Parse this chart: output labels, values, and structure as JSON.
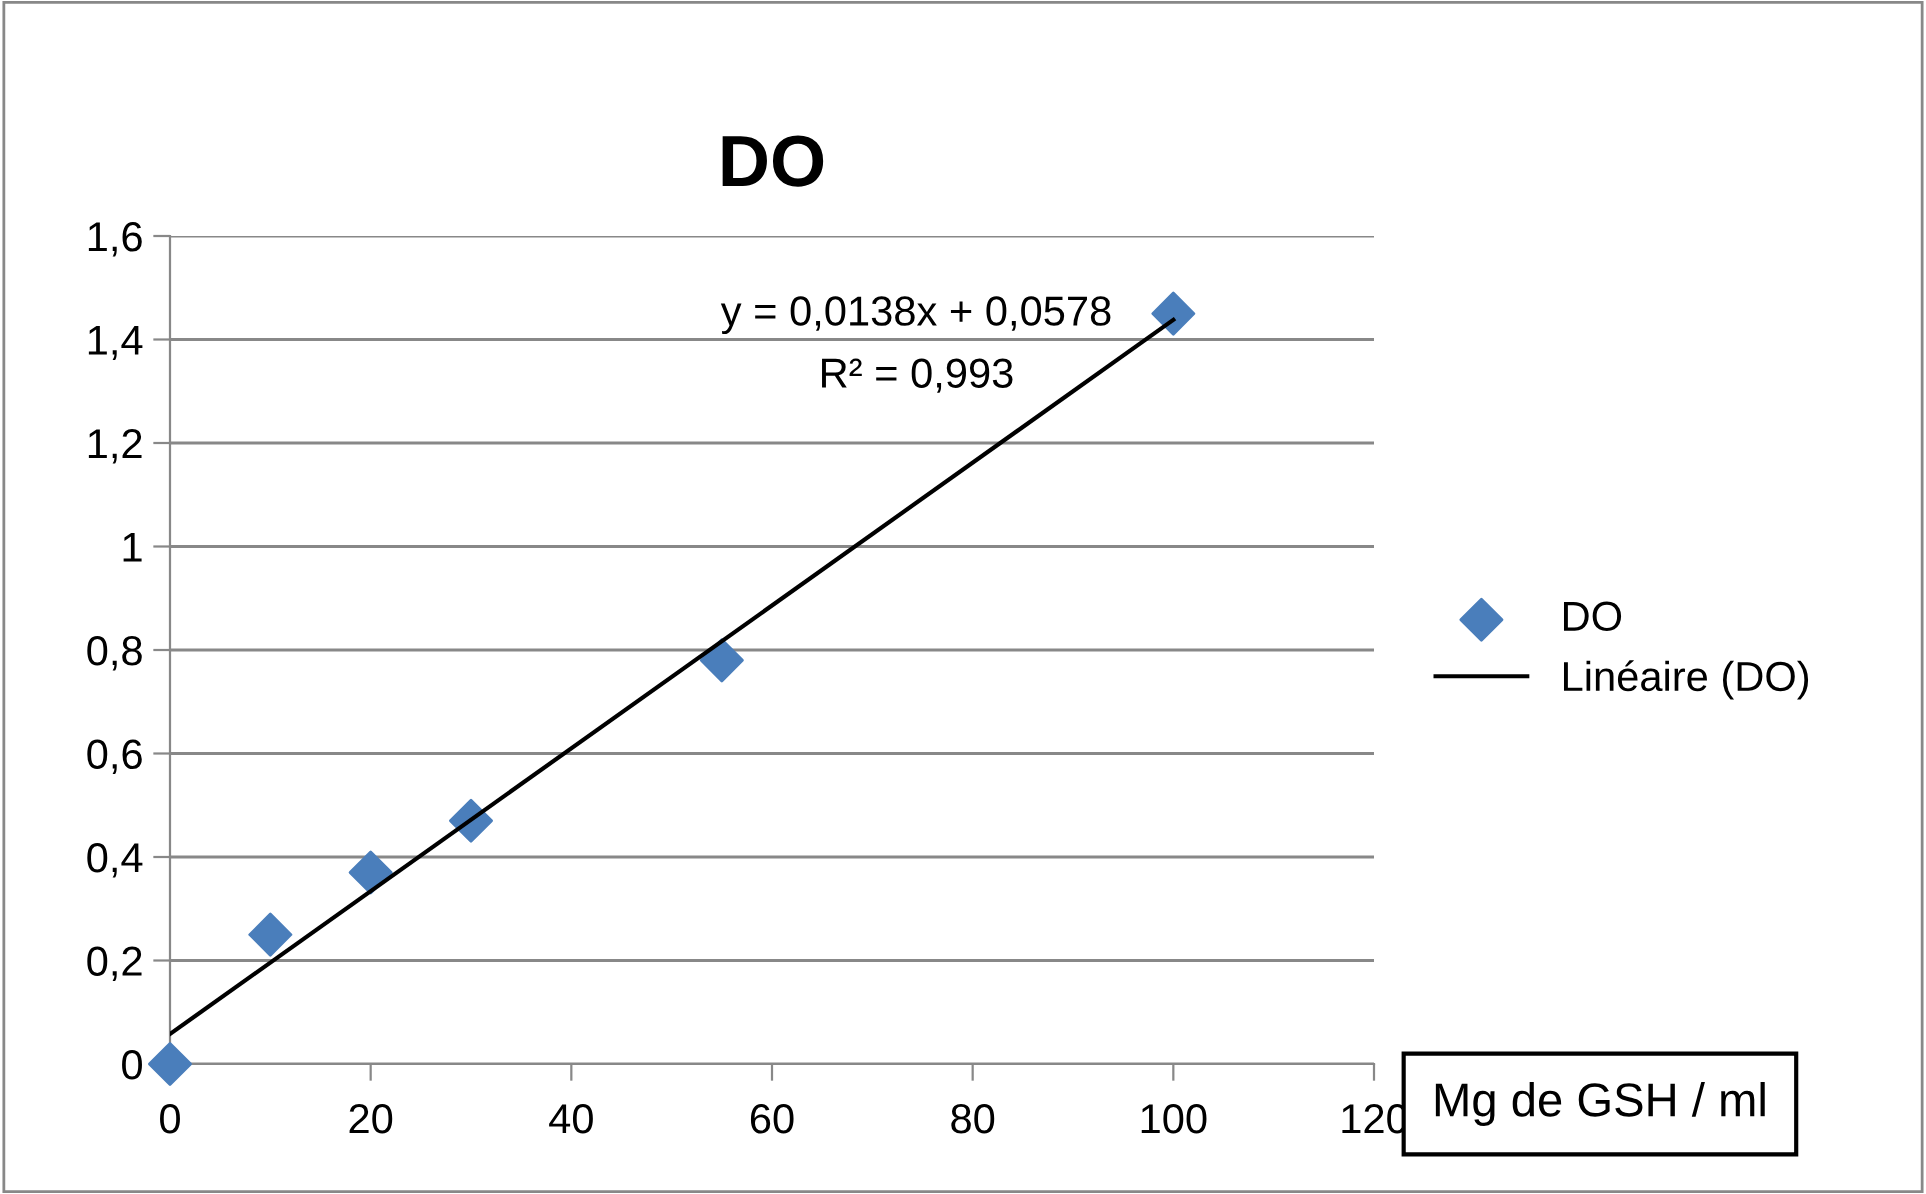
{
  "chart_data": {
    "type": "scatter",
    "title": "DO",
    "xlabel": "Mg de GSH / ml",
    "xlim": [
      0,
      120
    ],
    "xticks": [
      0,
      20,
      40,
      60,
      80,
      100,
      120
    ],
    "ylim": [
      0,
      1.6
    ],
    "yticks": [
      0,
      {
        "value": 0.2,
        "label": "0,2"
      },
      {
        "value": 0.4,
        "label": "0,4"
      },
      {
        "value": 0.6,
        "label": "0,6"
      },
      {
        "value": 0.8,
        "label": "0,8"
      },
      1,
      {
        "value": 1.2,
        "label": "1,2"
      },
      {
        "value": 1.4,
        "label": "1,4"
      },
      {
        "value": 1.6,
        "label": "1,6"
      }
    ],
    "grid": "y",
    "legend": "right",
    "series": [
      {
        "name": "DO",
        "marker": "diamond",
        "color": "#4a7ebb",
        "x": [
          0,
          10,
          20,
          30,
          55,
          100
        ],
        "values": [
          0,
          0.25,
          0.37,
          0.47,
          0.78,
          1.45
        ]
      },
      {
        "name": "Linéaire (DO)",
        "type": "line",
        "marker": "none",
        "line_style": "solid",
        "color": "#000000",
        "x": [
          0,
          100
        ],
        "values": [
          0.058,
          1.438
        ]
      }
    ],
    "annotations": [
      "y = 0,0138x + 0,0578",
      "R² = 0,993"
    ]
  }
}
